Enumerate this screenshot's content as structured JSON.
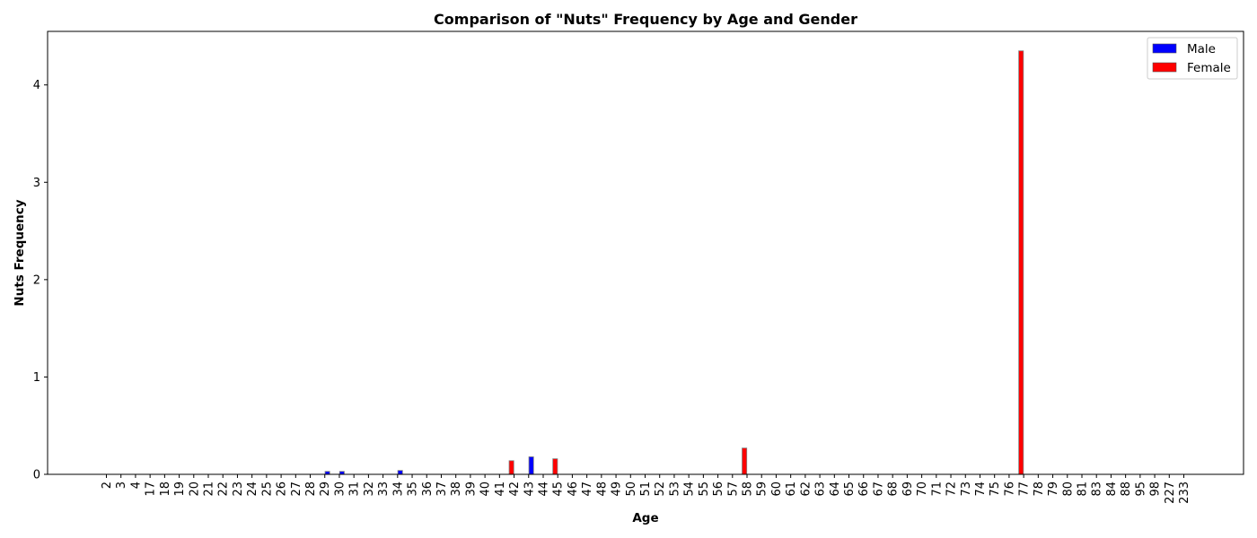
{
  "chart_data": {
    "type": "bar",
    "title": "Comparison of \"Nuts\" Frequency by Age and Gender",
    "xlabel": "Age",
    "ylabel": "Nuts Frequency",
    "ylim": [
      0,
      4.55
    ],
    "yticks": [
      0,
      1,
      2,
      3,
      4
    ],
    "grid": false,
    "legend_position": "top-right",
    "categories": [
      "2",
      "3",
      "4",
      "17",
      "18",
      "19",
      "20",
      "21",
      "22",
      "23",
      "24",
      "25",
      "26",
      "27",
      "28",
      "29",
      "30",
      "31",
      "32",
      "33",
      "34",
      "35",
      "36",
      "37",
      "38",
      "39",
      "40",
      "41",
      "42",
      "43",
      "44",
      "45",
      "46",
      "47",
      "48",
      "49",
      "50",
      "51",
      "52",
      "53",
      "54",
      "55",
      "56",
      "57",
      "58",
      "59",
      "60",
      "61",
      "62",
      "63",
      "64",
      "65",
      "66",
      "67",
      "68",
      "69",
      "70",
      "71",
      "72",
      "73",
      "74",
      "75",
      "76",
      "77",
      "78",
      "79",
      "80",
      "81",
      "83",
      "84",
      "88",
      "95",
      "98",
      "227",
      "233"
    ],
    "series": [
      {
        "name": "Male",
        "color": "#0000ff",
        "values": [
          0,
          0,
          0,
          0,
          0,
          0,
          0,
          0,
          0,
          0,
          0,
          0,
          0,
          0,
          0,
          0.03,
          0.03,
          0,
          0,
          0,
          0.04,
          0,
          0,
          0,
          0,
          0,
          0,
          0,
          0,
          0.18,
          0,
          0,
          0,
          0,
          0,
          0,
          0,
          0,
          0,
          0,
          0,
          0,
          0,
          0,
          0,
          0,
          0,
          0,
          0,
          0,
          0,
          0,
          0,
          0,
          0,
          0,
          0,
          0,
          0,
          0,
          0,
          0,
          0,
          0,
          0,
          0,
          0,
          0,
          0,
          0,
          0,
          0,
          0,
          0,
          0
        ]
      },
      {
        "name": "Female",
        "color": "#ff0000",
        "values": [
          0,
          0,
          0,
          0,
          0,
          0,
          0,
          0,
          0,
          0,
          0,
          0,
          0,
          0,
          0,
          0,
          0,
          0,
          0,
          0,
          0,
          0,
          0,
          0,
          0,
          0,
          0,
          0,
          0.14,
          0,
          0,
          0.16,
          0,
          0,
          0,
          0,
          0,
          0,
          0,
          0,
          0,
          0,
          0,
          0,
          0.27,
          0,
          0,
          0,
          0,
          0,
          0,
          0,
          0,
          0,
          0,
          0,
          0,
          0,
          0,
          0,
          0,
          0,
          0,
          4.35,
          0,
          0,
          0,
          0,
          0,
          0,
          0,
          0,
          0,
          0,
          0
        ]
      }
    ]
  }
}
